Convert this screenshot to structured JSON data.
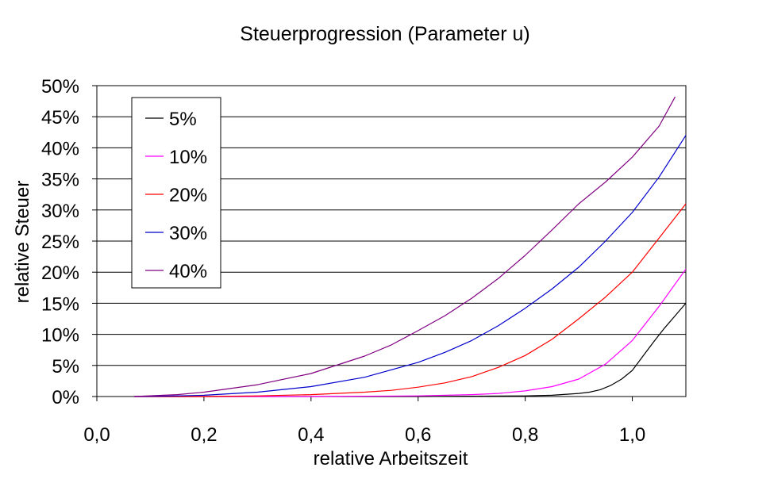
{
  "chart_data": {
    "type": "line",
    "title": "Steuerprogression (Parameter u)",
    "xlabel": "relative Arbeitszeit",
    "ylabel": "relative Steuer",
    "xlim": [
      0.0,
      1.1
    ],
    "ylim": [
      0.0,
      0.5
    ],
    "x_ticks": [
      "0,0",
      "0,2",
      "0,4",
      "0,6",
      "0,8",
      "1,0"
    ],
    "y_ticks": [
      "0%",
      "5%",
      "10%",
      "15%",
      "20%",
      "25%",
      "30%",
      "35%",
      "40%",
      "45%",
      "50%"
    ],
    "grid": "horizontal",
    "legend_position": "top-left",
    "series": [
      {
        "name": "5%",
        "color": "#000000",
        "x": [
          0.07,
          0.2,
          0.4,
          0.6,
          0.8,
          0.85,
          0.9,
          0.92,
          0.94,
          0.96,
          0.98,
          1.0,
          1.02,
          1.04,
          1.06,
          1.08,
          1.1
        ],
        "y": [
          0.0,
          0.0,
          0.0,
          0.0,
          0.001,
          0.002,
          0.005,
          0.007,
          0.011,
          0.018,
          0.028,
          0.042,
          0.065,
          0.088,
          0.11,
          0.13,
          0.15
        ]
      },
      {
        "name": "10%",
        "color": "#ff00ff",
        "x": [
          0.07,
          0.2,
          0.4,
          0.6,
          0.7,
          0.75,
          0.8,
          0.85,
          0.9,
          0.95,
          1.0,
          1.05,
          1.1
        ],
        "y": [
          0.0,
          0.0,
          0.0,
          0.001,
          0.003,
          0.005,
          0.009,
          0.016,
          0.028,
          0.052,
          0.09,
          0.145,
          0.205
        ]
      },
      {
        "name": "20%",
        "color": "#ff0000",
        "x": [
          0.07,
          0.2,
          0.3,
          0.4,
          0.5,
          0.55,
          0.6,
          0.65,
          0.7,
          0.75,
          0.8,
          0.85,
          0.9,
          0.95,
          1.0,
          1.05,
          1.1
        ],
        "y": [
          0.0,
          0.0,
          0.001,
          0.003,
          0.007,
          0.01,
          0.015,
          0.022,
          0.032,
          0.047,
          0.066,
          0.092,
          0.125,
          0.16,
          0.2,
          0.255,
          0.31
        ]
      },
      {
        "name": "30%",
        "color": "#0000cc",
        "x": [
          0.07,
          0.15,
          0.2,
          0.3,
          0.4,
          0.5,
          0.6,
          0.65,
          0.7,
          0.75,
          0.8,
          0.85,
          0.9,
          0.95,
          1.0,
          1.05,
          1.1
        ],
        "y": [
          0.0,
          0.001,
          0.002,
          0.007,
          0.016,
          0.031,
          0.055,
          0.071,
          0.09,
          0.114,
          0.142,
          0.173,
          0.208,
          0.25,
          0.296,
          0.353,
          0.42
        ]
      },
      {
        "name": "40%",
        "color": "#800080",
        "x": [
          0.07,
          0.15,
          0.2,
          0.3,
          0.4,
          0.5,
          0.55,
          0.6,
          0.65,
          0.7,
          0.75,
          0.8,
          0.85,
          0.9,
          0.95,
          1.0,
          1.05,
          1.08
        ],
        "y": [
          0.0,
          0.003,
          0.007,
          0.019,
          0.037,
          0.065,
          0.083,
          0.106,
          0.13,
          0.158,
          0.19,
          0.227,
          0.268,
          0.31,
          0.345,
          0.385,
          0.435,
          0.482
        ]
      }
    ]
  }
}
